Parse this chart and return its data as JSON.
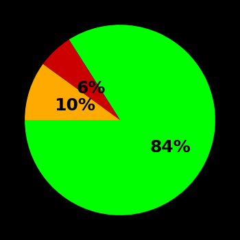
{
  "slices": [
    84,
    6,
    10
  ],
  "labels": [
    "84%",
    "6%",
    "10%"
  ],
  "colors": [
    "#00ff00",
    "#cc0000",
    "#ffaa00"
  ],
  "background_color": "#000000",
  "startangle": 180,
  "label_fontsize": 18,
  "label_color": "#000000",
  "label_radii": [
    0.6,
    0.45,
    0.5
  ],
  "figsize": [
    3.5,
    3.5
  ],
  "dpi": 100
}
